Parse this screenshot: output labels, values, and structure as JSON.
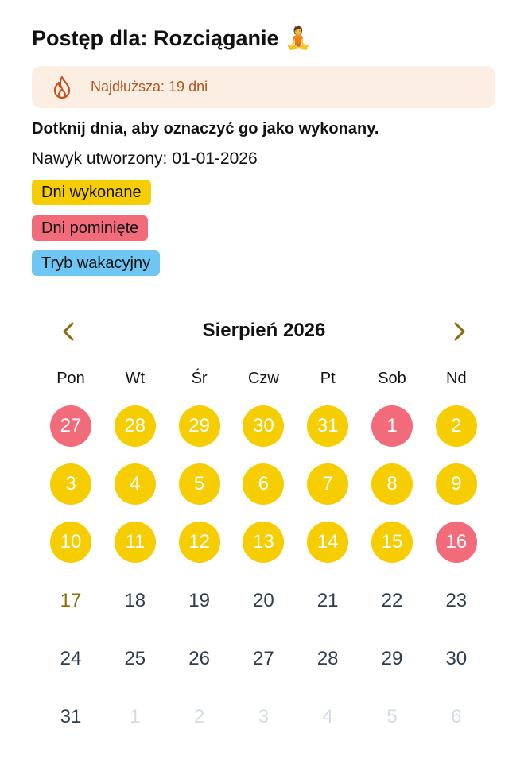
{
  "header": {
    "title": "Postęp dla: Rozciąganie 🧘"
  },
  "streak": {
    "text": "Najdłuższa: 19 dni"
  },
  "instruction": "Dotknij dnia, aby oznaczyć go jako wykonany.",
  "created": "Nawyk utworzony: 01-01-2026",
  "legend": [
    {
      "label": "Dni wykonane",
      "color": "#f5cd00"
    },
    {
      "label": "Dni pominięte",
      "color": "#f26b7a"
    },
    {
      "label": "Tryb wakacyjny",
      "color": "#6ec6f5"
    }
  ],
  "calendar": {
    "month": "Sierpień 2026",
    "weekdays": [
      "Pon",
      "Wt",
      "Śr",
      "Czw",
      "Pt",
      "Sob",
      "Nd"
    ],
    "days": [
      {
        "day": 27,
        "status": "missed"
      },
      {
        "day": 28,
        "status": "done"
      },
      {
        "day": 29,
        "status": "done"
      },
      {
        "day": 30,
        "status": "done"
      },
      {
        "day": 31,
        "status": "done"
      },
      {
        "day": 1,
        "status": "missed"
      },
      {
        "day": 2,
        "status": "done"
      },
      {
        "day": 3,
        "status": "done"
      },
      {
        "day": 4,
        "status": "done"
      },
      {
        "day": 5,
        "status": "done"
      },
      {
        "day": 6,
        "status": "done"
      },
      {
        "day": 7,
        "status": "done"
      },
      {
        "day": 8,
        "status": "done"
      },
      {
        "day": 9,
        "status": "done"
      },
      {
        "day": 10,
        "status": "done"
      },
      {
        "day": 11,
        "status": "done"
      },
      {
        "day": 12,
        "status": "done"
      },
      {
        "day": 13,
        "status": "done"
      },
      {
        "day": 14,
        "status": "done"
      },
      {
        "day": 15,
        "status": "done"
      },
      {
        "day": 16,
        "status": "missed"
      },
      {
        "day": 17,
        "status": "today"
      },
      {
        "day": 18,
        "status": "none"
      },
      {
        "day": 19,
        "status": "none"
      },
      {
        "day": 20,
        "status": "none"
      },
      {
        "day": 21,
        "status": "none"
      },
      {
        "day": 22,
        "status": "none"
      },
      {
        "day": 23,
        "status": "none"
      },
      {
        "day": 24,
        "status": "none"
      },
      {
        "day": 25,
        "status": "none"
      },
      {
        "day": 26,
        "status": "none"
      },
      {
        "day": 27,
        "status": "none"
      },
      {
        "day": 28,
        "status": "none"
      },
      {
        "day": 29,
        "status": "none"
      },
      {
        "day": 30,
        "status": "none"
      },
      {
        "day": 31,
        "status": "none"
      },
      {
        "day": 1,
        "status": "outside"
      },
      {
        "day": 2,
        "status": "outside"
      },
      {
        "day": 3,
        "status": "outside"
      },
      {
        "day": 4,
        "status": "outside"
      },
      {
        "day": 5,
        "status": "outside"
      },
      {
        "day": 6,
        "status": "outside"
      }
    ]
  }
}
